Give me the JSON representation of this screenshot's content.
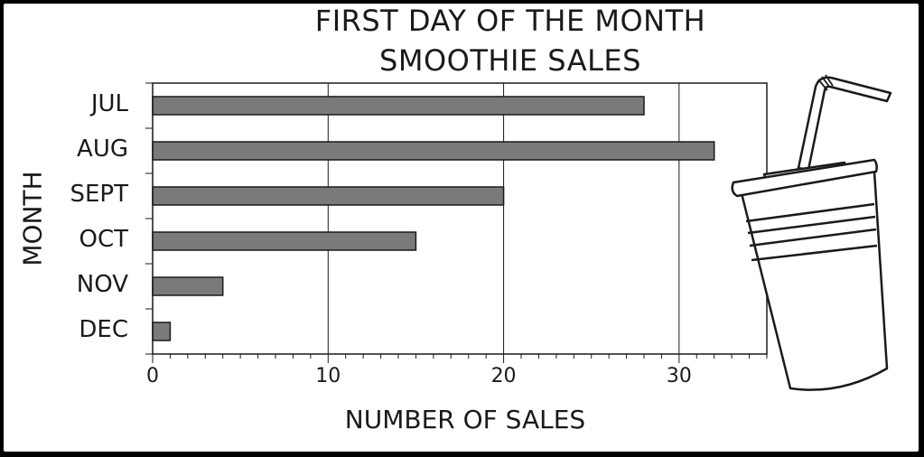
{
  "chart_data": {
    "type": "bar",
    "orientation": "horizontal",
    "title_lines": [
      "FIRST DAY OF THE MONTH",
      "SMOOTHIE SALES"
    ],
    "xlabel": "NUMBER OF SALES",
    "ylabel": "MONTH",
    "categories": [
      "JUL",
      "AUG",
      "SEPT",
      "OCT",
      "NOV",
      "DEC"
    ],
    "values": [
      28,
      32,
      20,
      15,
      4,
      1
    ],
    "xlim": [
      0,
      35
    ],
    "xticks": [
      0,
      10,
      20,
      30
    ],
    "grid": true,
    "bar_color": "#7a7a7a",
    "decoration": "cup-with-straw-icon"
  }
}
